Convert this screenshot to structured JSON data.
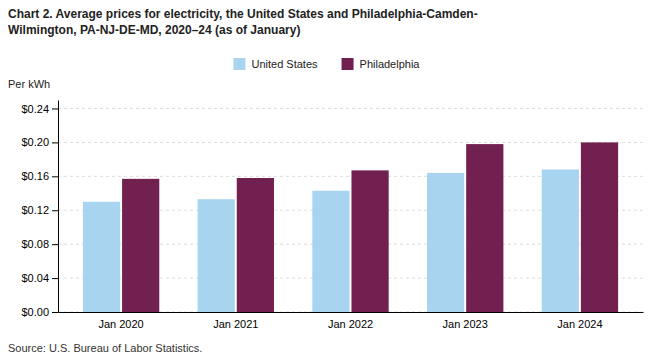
{
  "chart_data": {
    "type": "bar",
    "title": "Chart 2. Average prices for electricity, the United States and Philadelphia-Camden-\nWilmington, PA-NJ-DE-MD, 2020–24 (as of January)",
    "ylabel": "Per kWh",
    "source": "Source: U.S. Bureau of Labor Statistics.",
    "categories": [
      "Jan 2020",
      "Jan 2021",
      "Jan 2022",
      "Jan 2023",
      "Jan 2024"
    ],
    "series": [
      {
        "name": "United States",
        "color": "#a8d4f0",
        "values": [
          0.13,
          0.133,
          0.143,
          0.164,
          0.168
        ]
      },
      {
        "name": "Philadelphia",
        "color": "#722050",
        "values": [
          0.157,
          0.158,
          0.167,
          0.198,
          0.2
        ]
      }
    ],
    "ylim": [
      0,
      0.25
    ],
    "yticks": [
      {
        "value": 0.0,
        "label": "$0.00"
      },
      {
        "value": 0.04,
        "label": "$0.04"
      },
      {
        "value": 0.08,
        "label": "$0.08"
      },
      {
        "value": 0.12,
        "label": "$0.12"
      },
      {
        "value": 0.16,
        "label": "$0.16"
      },
      {
        "value": 0.2,
        "label": "$0.20"
      },
      {
        "value": 0.24,
        "label": "$0.24"
      }
    ],
    "grid": true,
    "legend": "top"
  }
}
